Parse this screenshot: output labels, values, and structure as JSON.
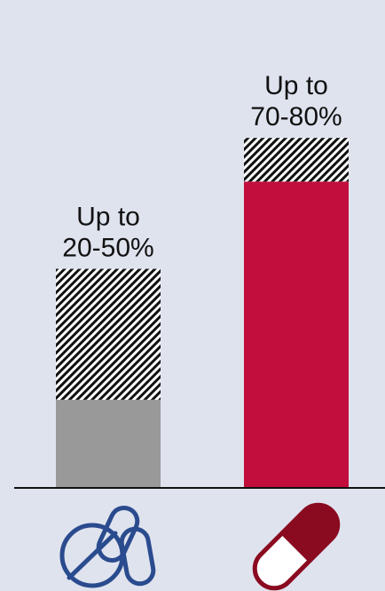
{
  "chart_data": {
    "type": "bar",
    "stacked": true,
    "ylim": [
      0,
      100
    ],
    "grid": false,
    "categories": [
      "",
      ""
    ],
    "bars": [
      {
        "label_lines": [
          "Up to",
          "20-50%"
        ],
        "low": 20,
        "high": 50,
        "solid_color": "#999999",
        "icon": "tablets-icon"
      },
      {
        "label_lines": [
          "Up to",
          "70-80%"
        ],
        "low": 70,
        "high": 80,
        "solid_color": "#c20e3c",
        "icon": "capsule-icon"
      }
    ],
    "range_pattern": "diagonal-hatch-black-white",
    "icon_color": "#2a4b8e",
    "capsule_dark_color": "#8a0a20",
    "axis_color": "#111111"
  }
}
